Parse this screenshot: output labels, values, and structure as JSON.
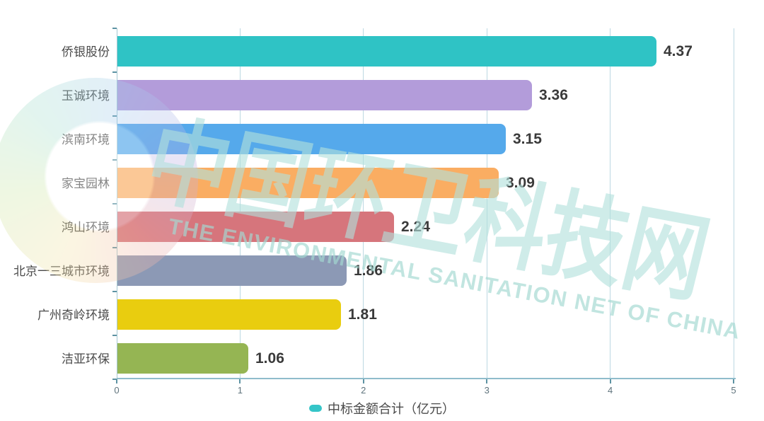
{
  "chart_data": {
    "type": "bar",
    "orientation": "horizontal",
    "title": "",
    "xlabel": "",
    "ylabel": "",
    "categories": [
      "侨银股份",
      "玉诚环境",
      "滨南环境",
      "家宝园林",
      "鸿山环境",
      "北京一三城市环境",
      "广州奇岭环境",
      "洁亚环保"
    ],
    "series": [
      {
        "name": "中标金额合计（亿元）",
        "values": [
          4.37,
          3.36,
          3.15,
          3.09,
          2.24,
          1.86,
          1.81,
          1.06
        ]
      }
    ],
    "value_labels": [
      "4.37",
      "3.36",
      "3.15",
      "3.09",
      "2.24",
      "1.86",
      "1.81",
      "1.06"
    ],
    "bar_colors": [
      "#2fc3c5",
      "#b39cda",
      "#55a9eb",
      "#faad62",
      "#d6757c",
      "#8c99b5",
      "#e9cd0f",
      "#95b553"
    ],
    "xlim": [
      0,
      5
    ],
    "x_ticks": [
      "0",
      "1",
      "2",
      "3",
      "4",
      "5"
    ],
    "grid": "vertical",
    "legend_position": "bottom"
  },
  "legend": {
    "label": "中标金额合计（亿元）",
    "marker_color": "#35c5c8"
  },
  "watermark": {
    "cn": "中国环卫科技网",
    "en": "THE ENVIRONMENTAL SANITATION NET OF CHINA"
  }
}
